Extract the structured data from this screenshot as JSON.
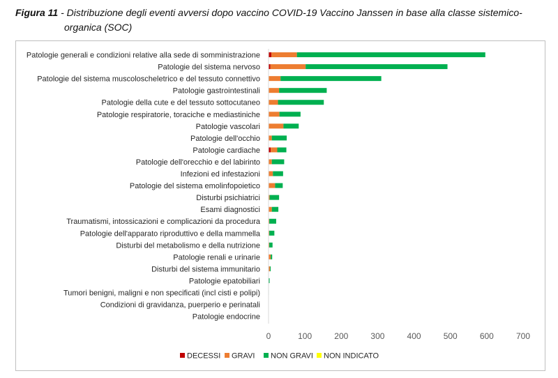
{
  "figure": {
    "label": "Figura 11",
    "separator": " - ",
    "title_line1": "Distribuzione degli eventi avversi dopo vaccino COVID-19 Vaccino Janssen in base alla classe sistemico-",
    "title_line2": "organica (SOC)"
  },
  "chart_data": {
    "type": "bar",
    "orientation": "horizontal",
    "stacked": true,
    "categories": [
      "Patologie generali e condizioni relative alla sede di somministrazione",
      "Patologie del sistema nervoso",
      "Patologie del sistema muscoloscheletrico e del tessuto connettivo",
      "Patologie gastrointestinali",
      "Patologie della cute e del tessuto sottocutaneo",
      "Patologie respiratorie, toraciche e mediastiniche",
      "Patologie vascolari",
      "Patologie dell'occhio",
      "Patologie cardiache",
      "Patologie dell'orecchio e del labirinto",
      "Infezioni ed infestazioni",
      "Patologie del sistema emolinfopoietico",
      "Disturbi psichiatrici",
      "Esami diagnostici",
      "Traumatismi, intossicazioni e complicazioni da procedura",
      "Patologie dell'apparato riproduttivo e della mammella",
      "Disturbi del metabolismo e della nutrizione",
      "Patologie renali e urinarie",
      "Disturbi del sistema immunitario",
      "Patologie epatobiliari",
      "Tumori benigni, maligni e non specificati (incl cisti e polipi)",
      "Condizioni di gravidanza, puerperio e perinatali",
      "Patologie endocrine"
    ],
    "series": [
      {
        "name": "DECESSI",
        "color": "#c00000",
        "values": [
          8,
          5,
          0,
          0,
          0,
          0,
          1,
          0,
          6,
          0,
          0,
          0,
          0,
          0,
          0,
          0,
          0,
          0,
          0,
          0,
          0,
          0,
          0
        ]
      },
      {
        "name": "GRAVI",
        "color": "#ed7d31",
        "values": [
          70,
          97,
          33,
          29,
          26,
          30,
          40,
          9,
          18,
          9,
          12,
          18,
          3,
          9,
          2,
          2,
          2,
          6,
          4,
          1,
          0,
          0,
          0
        ]
      },
      {
        "name": "NON GRAVI",
        "color": "#00b050",
        "values": [
          518,
          390,
          277,
          131,
          126,
          58,
          42,
          41,
          25,
          34,
          28,
          21,
          26,
          18,
          19,
          14,
          9,
          4,
          2,
          2,
          1,
          0,
          0
        ]
      },
      {
        "name": "NON INDICATO",
        "color": "#ffff00",
        "values": [
          0,
          0,
          0,
          0,
          0,
          0,
          0,
          0,
          0,
          0,
          0,
          0,
          0,
          0,
          0,
          0,
          0,
          0,
          0,
          0,
          0,
          0,
          0
        ]
      }
    ],
    "x_ticks": [
      0,
      100,
      200,
      300,
      400,
      500,
      600,
      700
    ],
    "xlim": [
      0,
      700
    ],
    "grid": false,
    "legend_position": "bottom"
  }
}
